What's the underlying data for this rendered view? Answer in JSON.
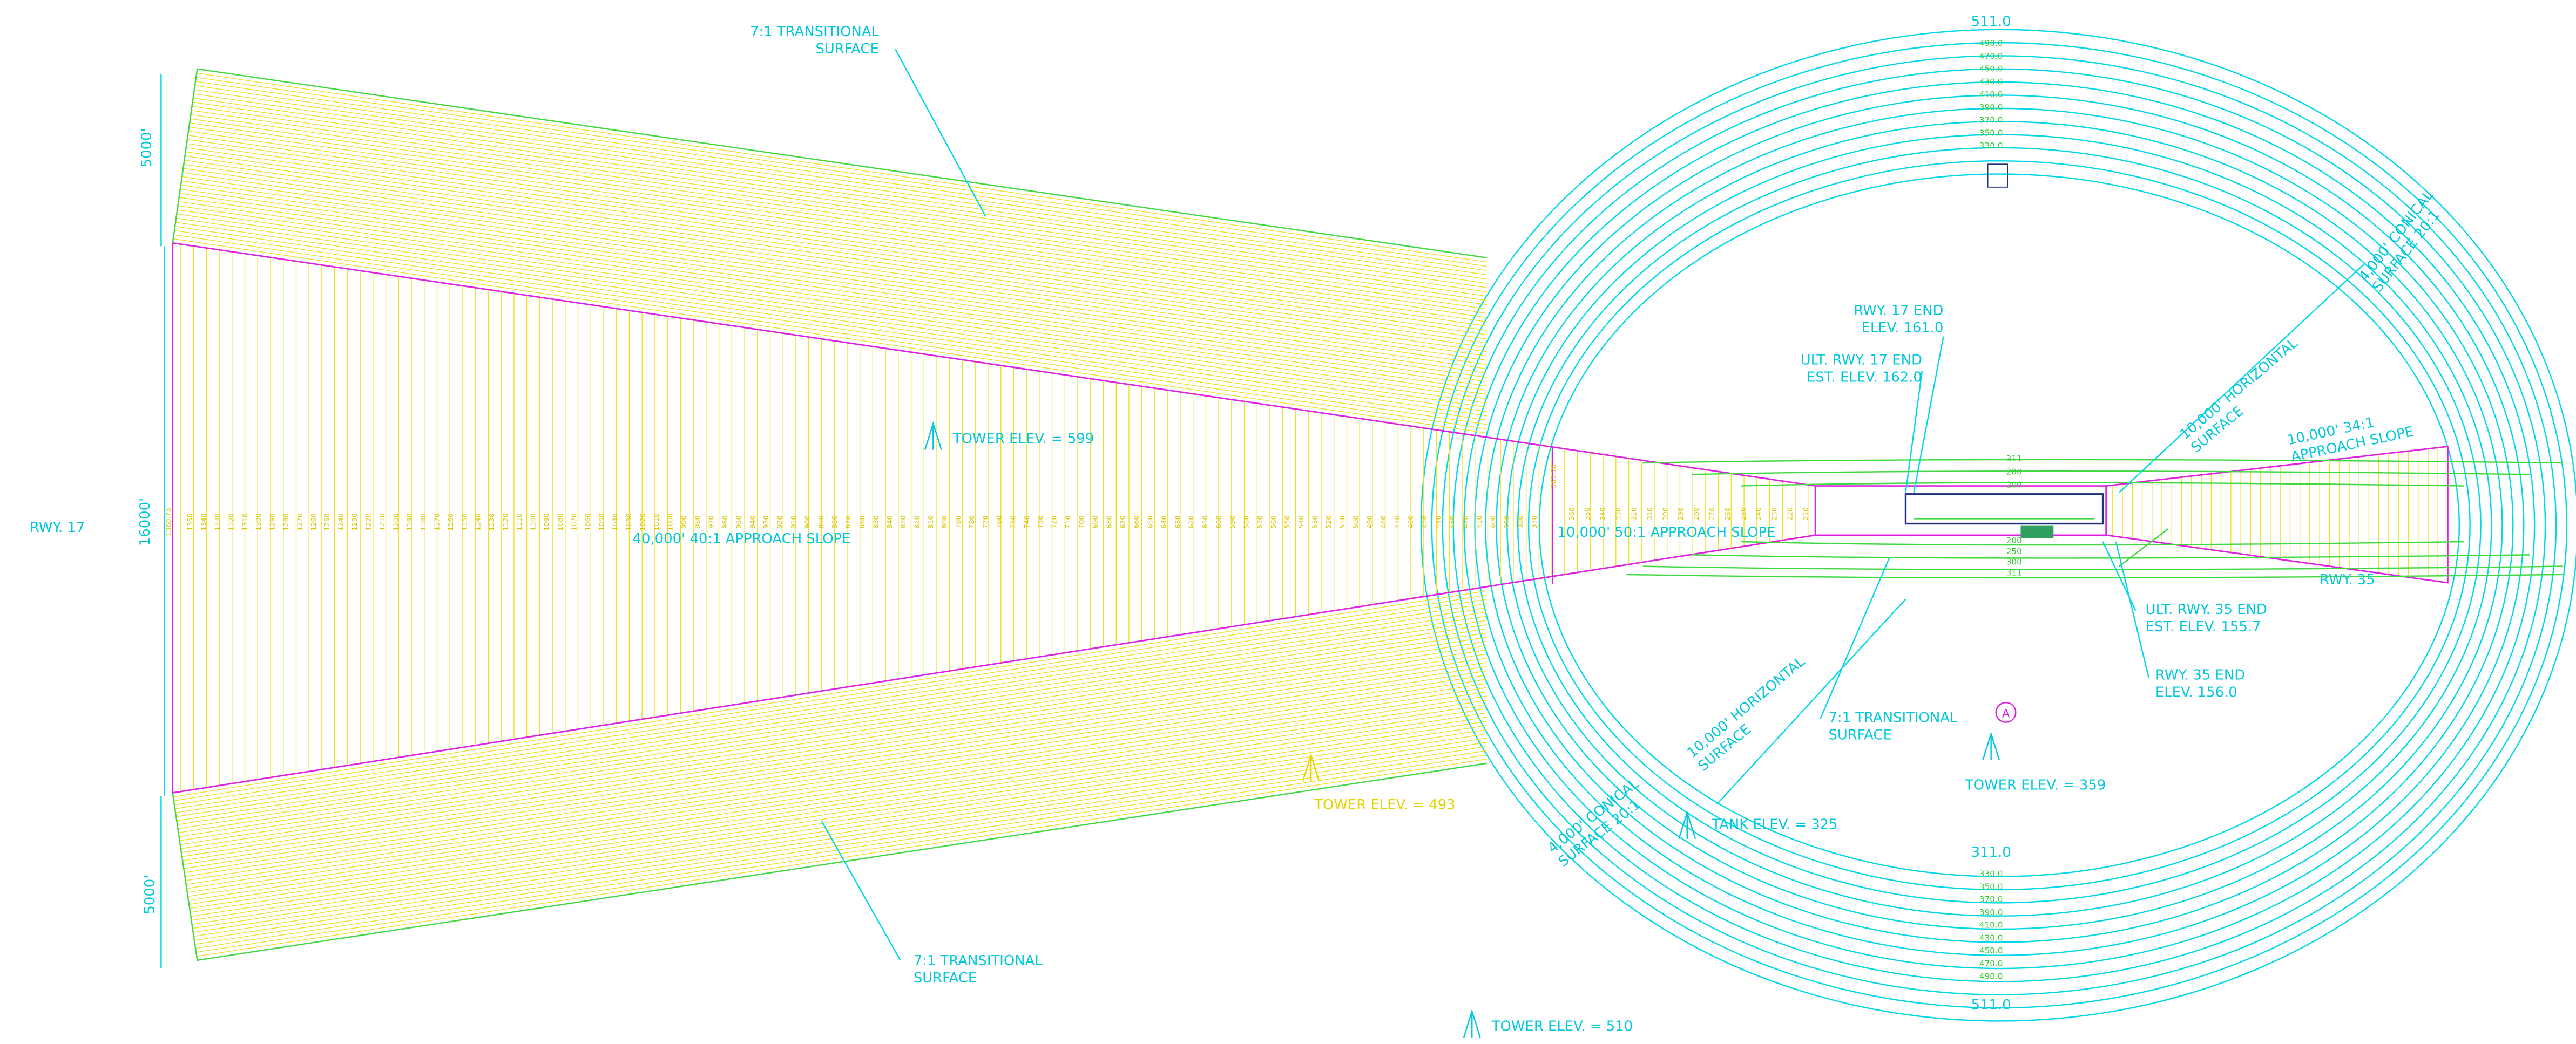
{
  "labels": {
    "transitional_top": [
      "7:1 TRANSITIONAL",
      "SURFACE"
    ],
    "transitional_bottom": [
      "7:1 TRANSITIONAL",
      "SURFACE"
    ],
    "transitional_mid": [
      "7:1 TRANSITIONAL",
      "SURFACE"
    ],
    "width_top": "5000'",
    "width_bottom": "5000'",
    "width_total": "16000'",
    "rwy17": "RWY. 17",
    "end_elev_left": "1360.78",
    "end_elev_mid": "361.78",
    "tower_599": "TOWER ELEV. = 599",
    "approach_40": "40,000' 40:1 APPROACH SLOPE",
    "approach_50": "10,000' 50:1 APPROACH SLOPE",
    "tower_493": "TOWER ELEV. = 493",
    "tower_510": "TOWER ELEV. = 510",
    "tank_325": "TANK ELEV. = 325",
    "tower_359": "TOWER ELEV. = 359",
    "marker_a": "A",
    "horizontal_bottom": [
      "10,000' HORIZONTAL",
      "SURFACE"
    ],
    "horizontal_top": [
      "10,000' HORIZONTAL",
      "SURFACE"
    ],
    "conical_bottom": [
      "4,000' CONICAL",
      "SURFACE 20:1"
    ],
    "conical_top": [
      "4,000' CONICAL",
      "SURFACE 20:1"
    ],
    "rwy17_end": [
      "RWY. 17 END",
      "ELEV. 161.0"
    ],
    "ult_rwy17_end": [
      "ULT. RWY. 17 END",
      "EST. ELEV. 162.0"
    ],
    "approach_34": [
      "10,000' 34:1",
      "APPROACH SLOPE"
    ],
    "rwy35": "RWY. 35",
    "ult_rwy35_end": [
      "ULT. RWY. 35 END",
      "EST. ELEV. 155.7"
    ],
    "rwy35_end": [
      "RWY. 35 END",
      "ELEV. 156.0"
    ]
  },
  "approach_40_1_stations": [
    1350,
    1340,
    1330,
    1320,
    1310,
    1300,
    1290,
    1280,
    1270,
    1260,
    1250,
    1240,
    1230,
    1220,
    1210,
    1200,
    1190,
    1180,
    1170,
    1160,
    1150,
    1140,
    1130,
    1120,
    1110,
    1100,
    1090,
    1080,
    1070,
    1060,
    1050,
    1040,
    1030,
    1020,
    1010,
    1000,
    990,
    980,
    970,
    960,
    950,
    940,
    930,
    920,
    910,
    900,
    890,
    880,
    870,
    860,
    850,
    840,
    830,
    820,
    810,
    800,
    790,
    780,
    770,
    760,
    750,
    740,
    730,
    720,
    710,
    700,
    690,
    680,
    670,
    660,
    650,
    640,
    630,
    620,
    610,
    600,
    590,
    580,
    570,
    560,
    550,
    540,
    530,
    520,
    510,
    500,
    490,
    480,
    470,
    460,
    450,
    440,
    430,
    420,
    410,
    400,
    390,
    380,
    370
  ],
  "approach_50_1_stations": [
    360,
    350,
    340,
    330,
    320,
    310,
    300,
    290,
    280,
    270,
    260,
    250,
    240,
    230,
    220,
    210
  ],
  "conical_contours_top": [
    "511.0",
    "490.0",
    "470.0",
    "450.0",
    "430.0",
    "410.0",
    "390.0",
    "370.0",
    "350.0",
    "330.0"
  ],
  "conical_contours_bottom": [
    "311.0",
    "330.0",
    "350.0",
    "370.0",
    "390.0",
    "410.0",
    "430.0",
    "450.0",
    "470.0",
    "490.0",
    "511.0"
  ],
  "runway_contours_top": [
    "311",
    "280",
    "200"
  ],
  "runway_contours_bottom": [
    "200",
    "250",
    "300",
    "311"
  ]
}
